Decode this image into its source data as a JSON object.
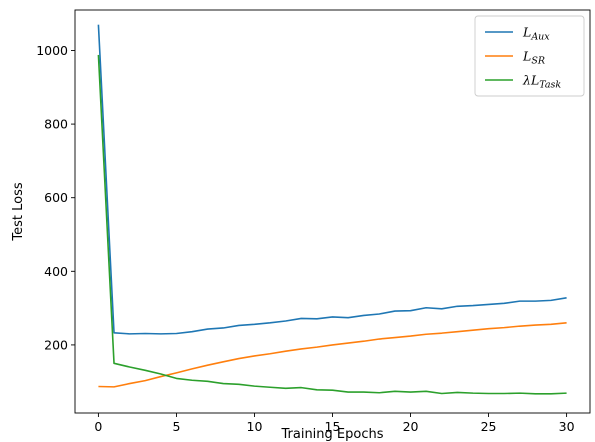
{
  "chart_data": {
    "type": "line",
    "title": "",
    "xlabel": "Training Epochs",
    "ylabel": "Test Loss",
    "xlim": [
      -1.5,
      31.5
    ],
    "ylim": [
      15,
      1110
    ],
    "xticks": [
      0,
      5,
      10,
      15,
      20,
      25,
      30
    ],
    "yticks": [
      200,
      400,
      600,
      800,
      1000
    ],
    "grid": false,
    "legend_position": "top-right",
    "x": [
      0,
      1,
      2,
      3,
      4,
      5,
      6,
      7,
      8,
      9,
      10,
      11,
      12,
      13,
      14,
      15,
      16,
      17,
      18,
      19,
      20,
      21,
      22,
      23,
      24,
      25,
      26,
      27,
      28,
      29,
      30
    ],
    "series": [
      {
        "name": "L_Aux",
        "label_main": "L",
        "label_sub": "Aux",
        "prefix": "",
        "color": "#1f77b4",
        "values": [
          1070,
          233,
          230,
          231,
          230,
          231,
          236,
          243,
          246,
          253,
          256,
          260,
          265,
          272,
          271,
          276,
          274,
          280,
          284,
          292,
          293,
          301,
          298,
          305,
          307,
          310,
          313,
          319,
          319,
          321,
          328
        ]
      },
      {
        "name": "L_SR",
        "label_main": "L",
        "label_sub": "SR",
        "prefix": "",
        "color": "#ff7f0e",
        "values": [
          87,
          86,
          95,
          103,
          114,
          124,
          135,
          145,
          154,
          163,
          170,
          176,
          183,
          189,
          194,
          200,
          205,
          210,
          216,
          220,
          224,
          229,
          232,
          236,
          240,
          244,
          247,
          251,
          254,
          256,
          260
        ]
      },
      {
        "name": "λL_Task",
        "label_main": "L",
        "label_sub": "Task",
        "prefix": "λ",
        "color": "#2ca02c",
        "values": [
          988,
          150,
          140,
          131,
          121,
          109,
          104,
          101,
          95,
          93,
          88,
          85,
          82,
          84,
          78,
          77,
          72,
          72,
          70,
          74,
          72,
          74,
          68,
          71,
          69,
          68,
          68,
          69,
          67,
          67,
          69
        ]
      }
    ]
  }
}
